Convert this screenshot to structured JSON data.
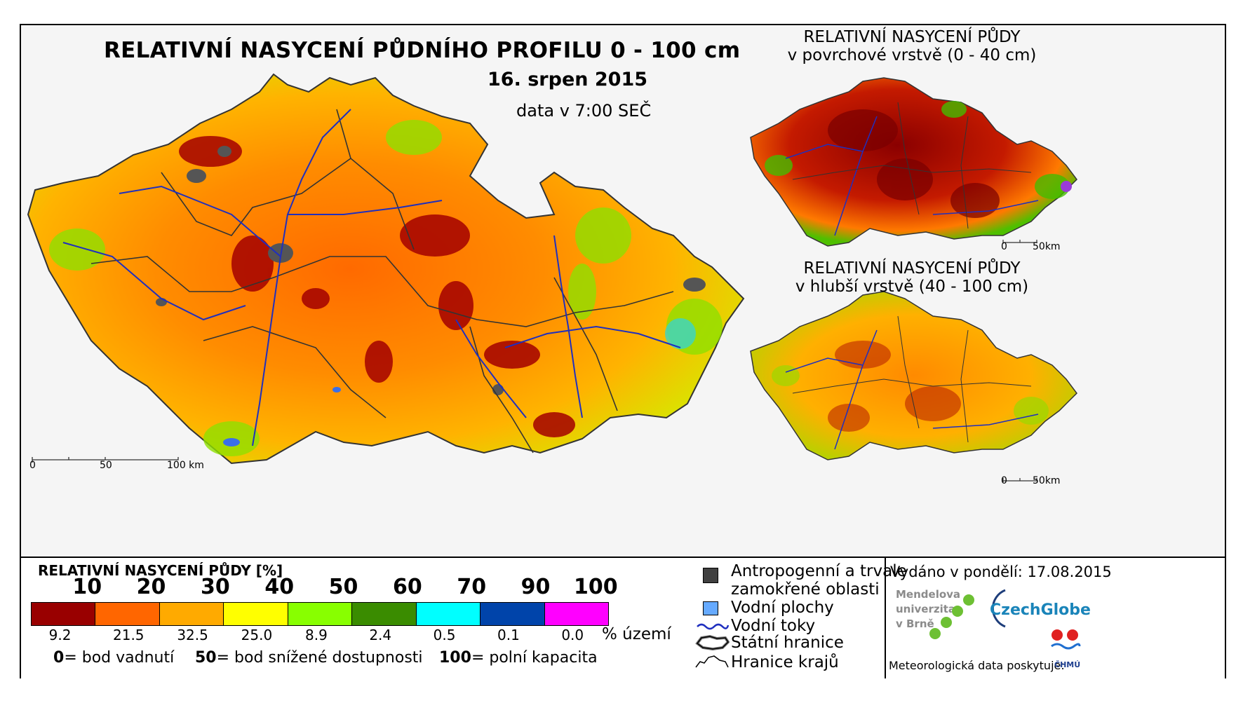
{
  "title": "RELATIVNÍ NASYCENÍ PŮDNÍHO PROFILU 0 - 100 cm",
  "date": "16. srpen 2015",
  "data_time": "data v 7:00 SEČ",
  "inset_top": {
    "title_line1": "RELATIVNÍ NASYCENÍ PŮDY",
    "title_line2": "v povrchové vrstvě (0 - 40 cm)",
    "scale_0": "0",
    "scale_50": "50km"
  },
  "inset_bottom": {
    "title_line1": "RELATIVNÍ NASYCENÍ PŮDY",
    "title_line2": "v hlubší vrstvě (40 - 100 cm)",
    "scale_0": "0",
    "scale_50": "50km"
  },
  "main_scale": {
    "s0": "0",
    "s50": "50",
    "s100": "100 km"
  },
  "legend": {
    "title": "RELATIVNÍ NASYCENÍ PŮDY [%]",
    "thresholds": [
      "10",
      "20",
      "30",
      "40",
      "50",
      "60",
      "70",
      "90",
      "100"
    ],
    "colors": [
      "#990000",
      "#ff6600",
      "#ffaa00",
      "#ffff00",
      "#88ff00",
      "#3a8c00",
      "#00ffff",
      "#0044aa",
      "#ff00ff"
    ],
    "percentages": [
      "9.2",
      "21.5",
      "32.5",
      "25.0",
      "8.9",
      "2.4",
      "0.5",
      "0.1",
      "0.0"
    ],
    "pct_label": "% území",
    "def0_num": "0",
    "def0_txt": "= bod vadnutí",
    "def50_num": "50",
    "def50_txt": "= bod snížené dostupnosti",
    "def100_num": "100",
    "def100_txt": "= polní kapacita"
  },
  "symbols": {
    "antropo_line1": "Antropogenní a trvale",
    "antropo_line2": "zamokřené oblasti",
    "water_bodies": "Vodní plochy",
    "rivers": "Vodní toky",
    "state_border": "Státní hranice",
    "region_border": "Hranice krajů",
    "antropo_color": "#404040",
    "water_color": "#66aaff",
    "river_color": "#1f2fbf"
  },
  "issued": "Vydáno v pondělí: 17.08.2015",
  "logos": {
    "mendel_1": "Mendelova",
    "mendel_2": "univerzita",
    "mendel_3": "v Brně",
    "czechglobe": "CzechGlobe",
    "chmu": "ČHMÚ"
  },
  "source": "Meteorologická data poskytuje:"
}
